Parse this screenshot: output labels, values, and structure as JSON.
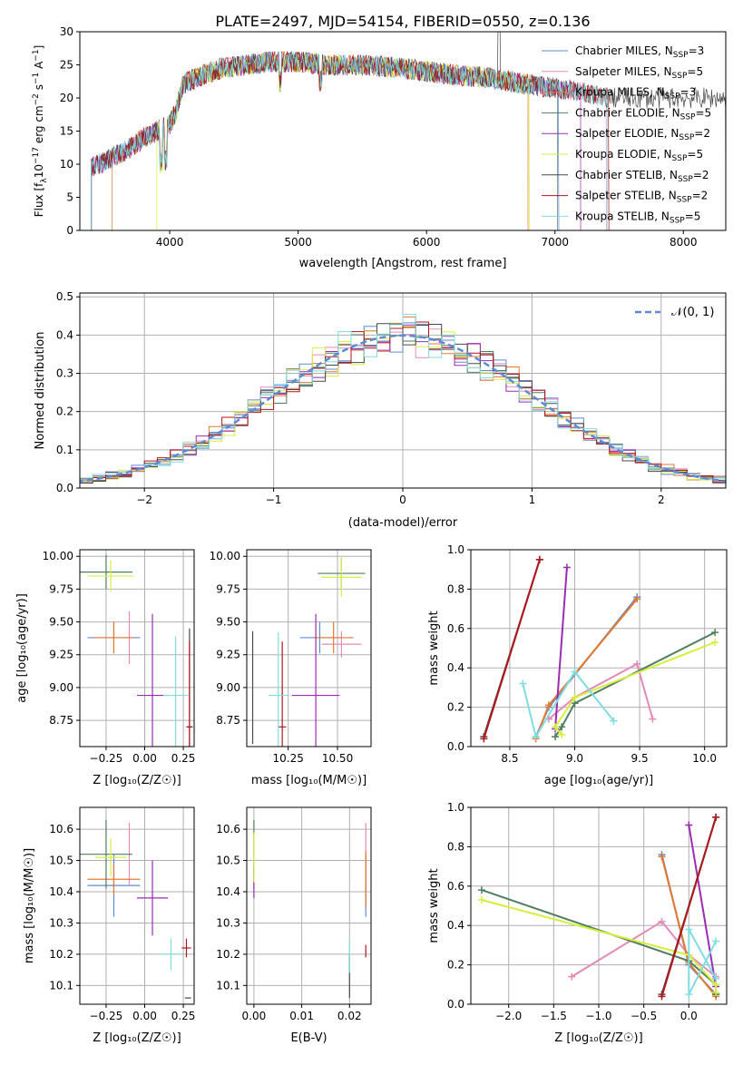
{
  "title": "PLATE=2497, MJD=54154, FIBERID=0550, z=0.136",
  "legend_series": [
    {
      "label": "Chabrier MILES, N$_{SSP}$=3",
      "text": "Chabrier MILES, N",
      "sub": "SSP",
      "tail": "=3",
      "color": "#5b8bd6"
    },
    {
      "label": "Salpeter MILES",
      "text": "Salpeter MILES, N",
      "sub": "SSP",
      "tail": "=5",
      "color": "#e48ab9"
    },
    {
      "label": "Kroupa MILES",
      "text": "Kroupa MILES, N",
      "sub": "SSP",
      "tail": "=3",
      "color": "#e8782c"
    },
    {
      "label": "Chabrier ELODIE",
      "text": "Chabrier ELODIE, N",
      "sub": "SSP",
      "tail": "=5",
      "color": "#4f7f5f"
    },
    {
      "label": "Salpeter ELODIE",
      "text": "Salpeter ELODIE, N",
      "sub": "SSP",
      "tail": "=2",
      "color": "#9b2bb5"
    },
    {
      "label": "Kroupa ELODIE",
      "text": "Kroupa ELODIE, N",
      "sub": "SSP",
      "tail": "=5",
      "color": "#d7ef3c"
    },
    {
      "label": "Chabrier STELIB",
      "text": "Chabrier STELIB, N",
      "sub": "SSP",
      "tail": "=2",
      "color": "#4a4a4a"
    },
    {
      "label": "Salpeter STELIB",
      "text": "Salpeter STELIB, N",
      "sub": "SSP",
      "tail": "=2",
      "color": "#b0171b"
    },
    {
      "label": "Kroupa STELIB",
      "text": "Kroupa STELIB, N",
      "sub": "SSP",
      "tail": "=5",
      "color": "#7fdde2"
    }
  ],
  "normal_legend": "𝒩(0, 1)",
  "chart_data": [
    {
      "type": "line",
      "panel": "spectrum",
      "xlabel": "wavelength [Angstrom, rest frame]",
      "ylabel_main": "Flux [f",
      "ylabel_sub": "λ",
      "ylabel_tail": "10",
      "ylabel_sup1": "−17",
      "ylabel_tail2": " erg cm",
      "ylabel_sup2": "−2",
      "ylabel_tail3": " s",
      "ylabel_sup3": "−1",
      "ylabel_tail4": " A",
      "ylabel_sup4": "−1",
      "ylabel_end": "]",
      "xlim": [
        3300,
        8330
      ],
      "ylim": [
        0,
        30
      ],
      "xticks": [
        4000,
        5000,
        6000,
        7000,
        8000
      ],
      "yticks": [
        0,
        5,
        10,
        15,
        20,
        25,
        30
      ],
      "grid": false,
      "legend": "upper right",
      "continuum_x": [
        3390,
        3500,
        3600,
        3700,
        3800,
        3900,
        4000,
        4050,
        4100,
        4200,
        4400,
        4600,
        4800,
        5000,
        5200,
        5500,
        5800,
        6000,
        6200,
        6500,
        6800,
        7000,
        7200,
        7400
      ],
      "continuum_y": [
        9.5,
        10.5,
        11.5,
        12.5,
        14,
        15,
        16,
        18,
        22,
        23,
        24.5,
        25,
        25.5,
        25.5,
        25,
        25,
        24.5,
        24,
        23.5,
        23,
        22,
        21.5,
        21,
        20
      ]
    },
    {
      "type": "step",
      "panel": "residual_histogram",
      "xlabel": "(data-model)/error",
      "ylabel": "Normed distribution",
      "xlim": [
        -2.5,
        2.5
      ],
      "ylim": [
        0,
        0.51
      ],
      "xticks": [
        -2,
        -1,
        0,
        1,
        2
      ],
      "yticks": [
        0.0,
        0.1,
        0.2,
        0.3,
        0.4,
        0.5
      ],
      "grid": true,
      "legend": "upper right",
      "bin_width": 0.1,
      "reference_curve": "normal(0,1)"
    },
    {
      "type": "scatter",
      "panel": "age_vs_Z",
      "xlabel": "Z [log₁₀(Z/Z☉)]",
      "ylabel": "age  [log₁₀(age/yr)]",
      "xlim": [
        -0.42,
        0.32
      ],
      "ylim": [
        8.55,
        10.05
      ],
      "xticks": [
        -0.25,
        0.0,
        0.25
      ],
      "yticks": [
        8.75,
        9.0,
        9.25,
        9.5,
        9.75,
        10.0
      ],
      "points": [
        {
          "x": -0.2,
          "y": 9.38,
          "xerr": 0.17,
          "yerr": 0.12,
          "color": "#5b8bd6"
        },
        {
          "x": -0.1,
          "y": 9.38,
          "xerr": 0.0,
          "yerr": 0.2,
          "color": "#e48ab9"
        },
        {
          "x": -0.2,
          "y": 9.38,
          "xerr": 0.13,
          "yerr": 0.12,
          "color": "#e8782c"
        },
        {
          "x": -0.25,
          "y": 9.88,
          "xerr": 0.17,
          "yerr": 0.13,
          "color": "#4f7f5f"
        },
        {
          "x": 0.05,
          "y": 8.94,
          "xerr": 0.1,
          "yerr": 0.62,
          "color": "#9b2bb5"
        },
        {
          "x": -0.22,
          "y": 9.85,
          "xerr": 0.15,
          "yerr": 0.12,
          "color": "#d7ef3c"
        },
        {
          "x": 0.29,
          "y": 8.7,
          "xerr": 0.02,
          "yerr": 0.75,
          "color": "#4a4a4a"
        },
        {
          "x": 0.29,
          "y": 8.7,
          "xerr": 0.02,
          "yerr": 0.65,
          "color": "#b0171b"
        },
        {
          "x": 0.2,
          "y": 8.94,
          "xerr": 0.08,
          "yerr": 0.45,
          "color": "#7fdde2"
        }
      ]
    },
    {
      "type": "scatter",
      "panel": "age_vs_mass",
      "xlabel": "mass [log₁₀(M/M☉)]",
      "ylabel": "",
      "xlim": [
        10.04,
        10.67
      ],
      "ylim": [
        8.55,
        10.05
      ],
      "xticks": [
        10.25,
        10.5
      ],
      "yticks": [
        8.75,
        9.0,
        9.25,
        9.5,
        9.75,
        10.0
      ],
      "points": [
        {
          "x": 10.41,
          "y": 9.38,
          "xerr": 0.1,
          "yerr": 0.12,
          "color": "#5b8bd6"
        },
        {
          "x": 10.52,
          "y": 9.33,
          "xerr": 0.1,
          "yerr": 0.1,
          "color": "#e48ab9"
        },
        {
          "x": 10.48,
          "y": 9.38,
          "xerr": 0.1,
          "yerr": 0.12,
          "color": "#e8782c"
        },
        {
          "x": 10.52,
          "y": 9.87,
          "xerr": 0.12,
          "yerr": 0.12,
          "color": "#4f7f5f"
        },
        {
          "x": 10.39,
          "y": 8.94,
          "xerr": 0.12,
          "yerr": 0.62,
          "color": "#9b2bb5"
        },
        {
          "x": 10.52,
          "y": 9.84,
          "xerr": 0.1,
          "yerr": 0.15,
          "color": "#d7ef3c"
        },
        {
          "x": 10.07,
          "y": 9.0,
          "xerr": 0.0,
          "yerr": 0.43,
          "color": "#4a4a4a"
        },
        {
          "x": 10.22,
          "y": 8.7,
          "xerr": 0.02,
          "yerr": 0.65,
          "color": "#b0171b"
        },
        {
          "x": 10.2,
          "y": 8.94,
          "xerr": 0.05,
          "yerr": 0.48,
          "color": "#7fdde2"
        }
      ]
    },
    {
      "type": "line",
      "panel": "mass_weight_vs_age",
      "xlabel": "age  [log₁₀(age/yr)]",
      "ylabel": "mass weight",
      "xlim": [
        8.2,
        10.17
      ],
      "ylim": [
        0,
        1
      ],
      "xticks": [
        8.5,
        9.0,
        9.5,
        10.0
      ],
      "yticks": [
        0.0,
        0.2,
        0.4,
        0.6,
        0.8,
        1.0
      ],
      "grid": true,
      "series": [
        {
          "color": "#5b8bd6",
          "x": [
            8.7,
            8.8,
            9.48
          ],
          "y": [
            0.05,
            0.2,
            0.76
          ]
        },
        {
          "color": "#e48ab9",
          "x": [
            8.8,
            9.0,
            9.48,
            9.6
          ],
          "y": [
            0.14,
            0.25,
            0.42,
            0.14
          ]
        },
        {
          "color": "#e8782c",
          "x": [
            8.7,
            8.8,
            9.48
          ],
          "y": [
            0.04,
            0.21,
            0.75
          ]
        },
        {
          "color": "#4f7f5f",
          "x": [
            8.85,
            8.9,
            9.0,
            10.08
          ],
          "y": [
            0.05,
            0.1,
            0.22,
            0.58
          ]
        },
        {
          "color": "#9b2bb5",
          "x": [
            8.85,
            8.94
          ],
          "y": [
            0.09,
            0.91
          ]
        },
        {
          "color": "#d7ef3c",
          "x": [
            8.9,
            8.85,
            9.0,
            10.08
          ],
          "y": [
            0.06,
            0.1,
            0.25,
            0.53
          ]
        },
        {
          "color": "#4a4a4a",
          "x": [
            8.3,
            8.73
          ],
          "y": [
            0.05,
            0.95
          ]
        },
        {
          "color": "#b0171b",
          "x": [
            8.3,
            8.73
          ],
          "y": [
            0.04,
            0.95
          ]
        },
        {
          "color": "#7fdde2",
          "x": [
            8.6,
            8.7,
            9.0,
            9.3
          ],
          "y": [
            0.32,
            0.05,
            0.38,
            0.13
          ]
        }
      ]
    },
    {
      "type": "scatter",
      "panel": "mass_vs_Z",
      "xlabel": "Z [log₁₀(Z/Z☉)]",
      "ylabel": "mass [log₁₀(M/M☉)]",
      "xlim": [
        -0.42,
        0.32
      ],
      "ylim": [
        10.04,
        10.67
      ],
      "xticks": [
        -0.25,
        0.0,
        0.25
      ],
      "yticks": [
        10.1,
        10.2,
        10.3,
        10.4,
        10.5,
        10.6
      ],
      "points": [
        {
          "x": -0.2,
          "y": 10.42,
          "xerr": 0.17,
          "yerr": 0.1,
          "color": "#5b8bd6"
        },
        {
          "x": -0.1,
          "y": 10.52,
          "xerr": 0.0,
          "yerr": 0.1,
          "color": "#e48ab9"
        },
        {
          "x": -0.2,
          "y": 10.44,
          "xerr": 0.17,
          "yerr": 0.05,
          "color": "#e8782c"
        },
        {
          "x": -0.25,
          "y": 10.52,
          "xerr": 0.17,
          "yerr": 0.11,
          "color": "#4f7f5f"
        },
        {
          "x": 0.05,
          "y": 10.38,
          "xerr": 0.1,
          "yerr": 0.12,
          "color": "#9b2bb5"
        },
        {
          "x": -0.22,
          "y": 10.51,
          "xerr": 0.1,
          "yerr": 0.06,
          "color": "#d7ef3c"
        },
        {
          "x": 0.28,
          "y": 10.06,
          "xerr": 0.02,
          "yerr": 0.0,
          "color": "#4a4a4a"
        },
        {
          "x": 0.27,
          "y": 10.22,
          "xerr": 0.03,
          "yerr": 0.03,
          "color": "#b0171b"
        },
        {
          "x": 0.17,
          "y": 10.2,
          "xerr": 0.07,
          "yerr": 0.05,
          "color": "#7fdde2"
        }
      ]
    },
    {
      "type": "scatter",
      "panel": "mass_vs_EBV",
      "xlabel": "E(B-V)",
      "ylabel": "",
      "xlim": [
        -0.0015,
        0.0245
      ],
      "ylim": [
        10.04,
        10.67
      ],
      "xticks": [
        0.0,
        0.01,
        0.02
      ],
      "yticks": [
        10.1,
        10.2,
        10.3,
        10.4,
        10.5,
        10.6
      ],
      "points": [
        {
          "x": 0.0234,
          "y": 10.42,
          "xerr": 0.0,
          "yerr": 0.1,
          "color": "#5b8bd6"
        },
        {
          "x": 0.0234,
          "y": 10.52,
          "xerr": 0.0,
          "yerr": 0.1,
          "color": "#e48ab9"
        },
        {
          "x": 0.0234,
          "y": 10.44,
          "xerr": 0.0,
          "yerr": 0.09,
          "color": "#e8782c"
        },
        {
          "x": 0.0,
          "y": 10.52,
          "xerr": 0.0,
          "yerr": 0.11,
          "color": "#4f7f5f"
        },
        {
          "x": 0.0,
          "y": 10.43,
          "xerr": 0.0,
          "yerr": 0.05,
          "color": "#9b2bb5"
        },
        {
          "x": 0.0,
          "y": 10.51,
          "xerr": 0.0,
          "yerr": 0.08,
          "color": "#d7ef3c"
        },
        {
          "x": 0.02,
          "y": 10.13,
          "xerr": 0.0,
          "yerr": 0.07,
          "color": "#4a4a4a"
        },
        {
          "x": 0.0234,
          "y": 10.21,
          "xerr": 0.0,
          "yerr": 0.02,
          "color": "#b0171b"
        },
        {
          "x": 0.02,
          "y": 10.19,
          "xerr": 0.0,
          "yerr": 0.05,
          "color": "#7fdde2"
        }
      ]
    },
    {
      "type": "line",
      "panel": "mass_weight_vs_Z",
      "xlabel": "Z [log₁₀(Z/Z☉)]",
      "ylabel": "mass weight",
      "xlim": [
        -2.42,
        0.42
      ],
      "ylim": [
        0,
        1
      ],
      "xticks": [
        -2.0,
        -1.5,
        -1.0,
        -0.5,
        0.0
      ],
      "yticks": [
        0.0,
        0.2,
        0.4,
        0.6,
        0.8,
        1.0
      ],
      "grid": true,
      "series": [
        {
          "color": "#5b8bd6",
          "x": [
            -0.3,
            0.0,
            0.3
          ],
          "y": [
            0.76,
            0.2,
            0.05
          ]
        },
        {
          "color": "#e48ab9",
          "x": [
            -1.3,
            -0.3,
            0.0,
            0.3
          ],
          "y": [
            0.14,
            0.42,
            0.25,
            0.14
          ]
        },
        {
          "color": "#e8782c",
          "x": [
            -0.3,
            0.0,
            0.3
          ],
          "y": [
            0.75,
            0.21,
            0.04
          ]
        },
        {
          "color": "#4f7f5f",
          "x": [
            -2.3,
            0.0,
            0.3,
            0.3
          ],
          "y": [
            0.58,
            0.22,
            0.1,
            0.05
          ]
        },
        {
          "color": "#9b2bb5",
          "x": [
            0.0,
            0.3
          ],
          "y": [
            0.91,
            0.09
          ]
        },
        {
          "color": "#d7ef3c",
          "x": [
            -2.3,
            0.0,
            0.3,
            0.3
          ],
          "y": [
            0.53,
            0.25,
            0.1,
            0.06
          ]
        },
        {
          "color": "#4a4a4a",
          "x": [
            -0.3,
            0.3
          ],
          "y": [
            0.05,
            0.95
          ]
        },
        {
          "color": "#b0171b",
          "x": [
            -0.3,
            0.3
          ],
          "y": [
            0.04,
            0.95
          ]
        },
        {
          "color": "#7fdde2",
          "x": [
            0.3,
            0.0,
            0.0,
            0.3
          ],
          "y": [
            0.32,
            0.05,
            0.38,
            0.13
          ]
        }
      ]
    }
  ]
}
